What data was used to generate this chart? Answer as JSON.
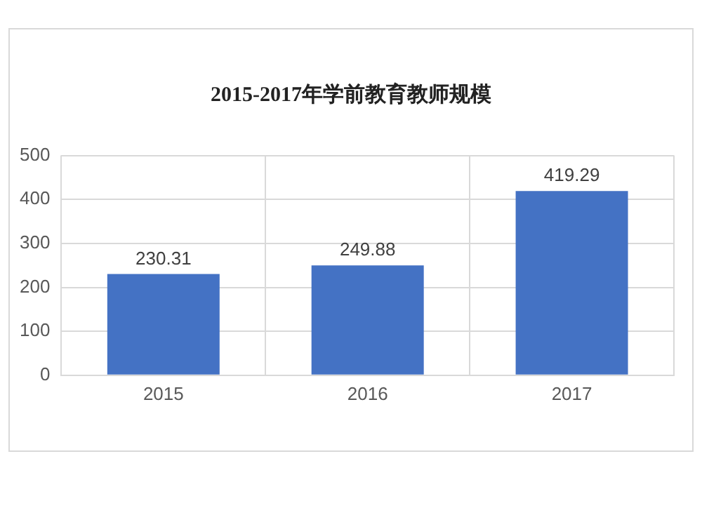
{
  "chart_data": {
    "type": "bar",
    "title": "2015-2017年学前教育教师规模",
    "categories": [
      "2015",
      "2016",
      "2017"
    ],
    "values": [
      230.31,
      249.88,
      419.29
    ],
    "color": "#4472c4",
    "ylim": [
      0,
      500
    ],
    "yticks": [
      0,
      100,
      200,
      300,
      400,
      500
    ],
    "grid": true,
    "data_labels": true
  }
}
